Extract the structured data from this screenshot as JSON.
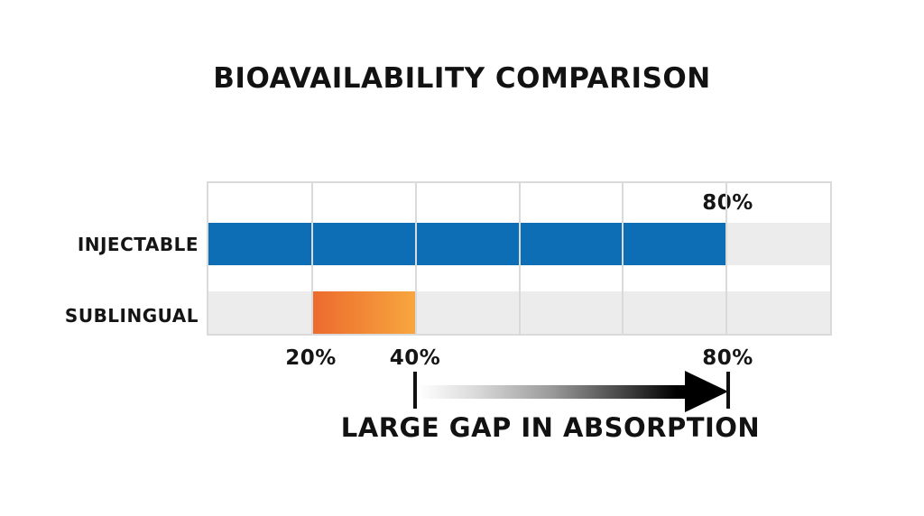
{
  "title": "BIOAVAILABILITY COMPARISON",
  "chart_data": {
    "type": "bar",
    "orientation": "horizontal",
    "title": "BIOAVAILABILITY COMPARISON",
    "categories": [
      "INJECTABLE",
      "SUBLINGUAL"
    ],
    "series": [
      {
        "name": "INJECTABLE",
        "value_label": "80%",
        "range_pct": [
          0,
          80
        ],
        "start_grid": 0,
        "end_grid": 5,
        "color": "#0d6eb5"
      },
      {
        "name": "SUBLINGUAL",
        "value_label": "",
        "range_pct": [
          20,
          40
        ],
        "start_grid": 1,
        "end_grid": 2,
        "color_gradient": [
          "#ec6a2e",
          "#f7a73f"
        ]
      }
    ],
    "x_axis": {
      "ticks": [
        {
          "label": "20%",
          "grid_index": 1
        },
        {
          "label": "40%",
          "grid_index": 2
        },
        {
          "label": "80%",
          "grid_index": 5
        }
      ],
      "grid_columns": 6,
      "gridlines": true
    },
    "colors": {
      "bar_blue": "#0d6eb5",
      "bar_orange_start": "#ec6a2e",
      "bar_orange_end": "#f7a73f",
      "track_gray": "#ececec",
      "gridline_gray": "#dadada",
      "text": "#121212"
    },
    "legend": false,
    "background": "#ffffff"
  },
  "annotation": {
    "label": "LARGE GAP IN ABSORPTION",
    "from_tick": "40%",
    "to_tick": "80%",
    "arrow_direction": "right"
  }
}
